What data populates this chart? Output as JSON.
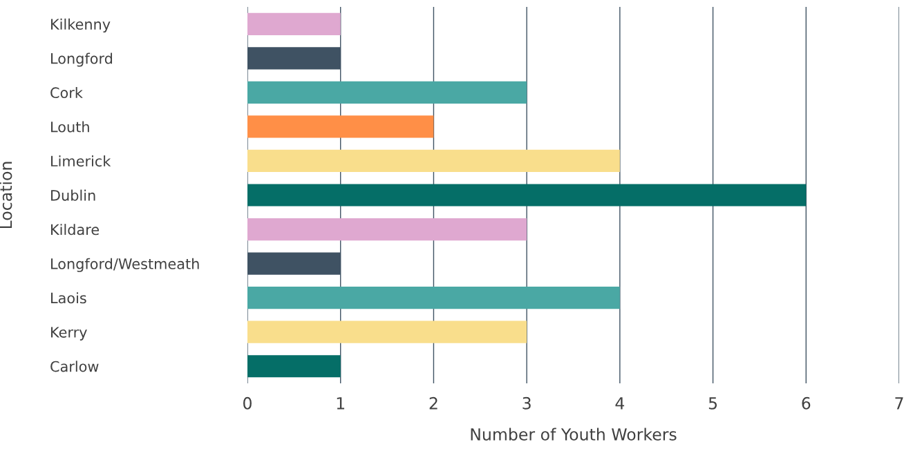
{
  "chart_data": {
    "type": "bar",
    "orientation": "horizontal",
    "xlabel": "Number of Youth Workers",
    "ylabel": "Location",
    "categories": [
      "Kilkenny",
      "Longford",
      "Cork",
      "Louth",
      "Limerick",
      "Dublin",
      "Kildare",
      "Longford/Westmeath",
      "Laois",
      "Kerry",
      "Carlow"
    ],
    "values": [
      1,
      1,
      3,
      2,
      4,
      6,
      3,
      1,
      4,
      3,
      1
    ],
    "colors": [
      "#dfa8d0",
      "#3f5263",
      "#4aa8a4",
      "#ff8f47",
      "#f9de8c",
      "#056e67",
      "#dfa8d0",
      "#3f5263",
      "#4aa8a4",
      "#f9de8c",
      "#056e67"
    ],
    "xlim": [
      0,
      7
    ],
    "xticks": [
      0,
      1,
      2,
      3,
      4,
      5,
      6,
      7
    ],
    "grid": "x"
  }
}
